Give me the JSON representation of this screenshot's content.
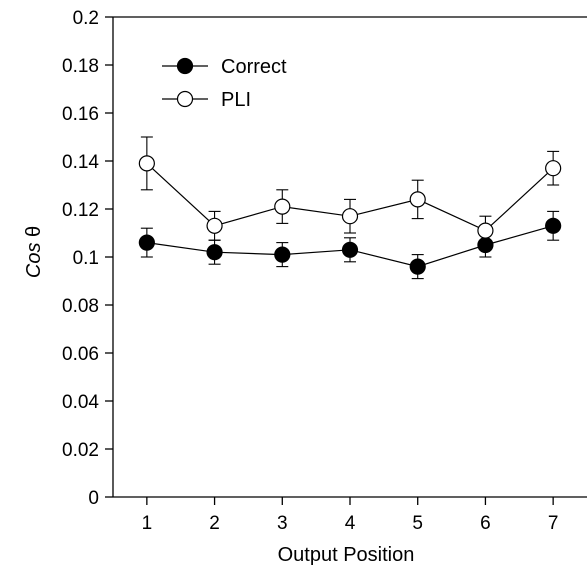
{
  "chart_data": {
    "type": "line",
    "xlabel": "Output Position",
    "ylabel_italic": "Cos",
    "ylabel_symbol": "θ",
    "x": [
      1,
      2,
      3,
      4,
      5,
      6,
      7
    ],
    "x_ticks": [
      "1",
      "2",
      "3",
      "4",
      "5",
      "6",
      "7"
    ],
    "xlim": [
      0.5,
      7.5
    ],
    "ylim": [
      0,
      0.2
    ],
    "y_ticks": [
      "0",
      "0.02",
      "0.04",
      "0.06",
      "0.08",
      "0.1",
      "0.12",
      "0.14",
      "0.16",
      "0.18",
      "0.2"
    ],
    "grid": false,
    "legend_position": "top-left",
    "series": [
      {
        "name": "Correct",
        "marker": "filled-circle",
        "color": "#000000",
        "values": [
          0.106,
          0.102,
          0.101,
          0.103,
          0.096,
          0.105,
          0.113
        ],
        "errors": [
          0.006,
          0.005,
          0.005,
          0.005,
          0.005,
          0.005,
          0.006
        ]
      },
      {
        "name": "PLI",
        "marker": "open-circle",
        "color": "#000000",
        "values": [
          0.139,
          0.113,
          0.121,
          0.117,
          0.124,
          0.111,
          0.137
        ],
        "errors": [
          0.011,
          0.006,
          0.007,
          0.007,
          0.008,
          0.006,
          0.007
        ]
      }
    ]
  }
}
